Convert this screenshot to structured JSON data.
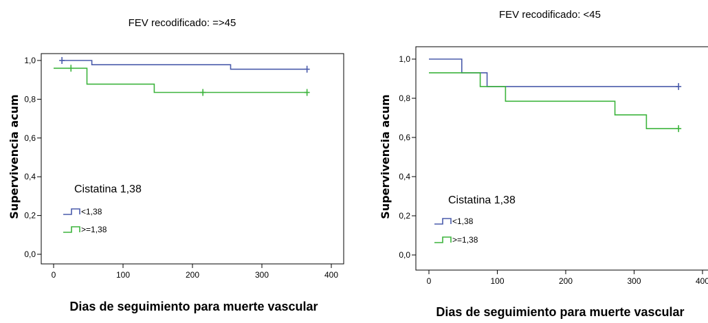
{
  "chart_data": [
    {
      "type": "line",
      "title": "FEV recodificado: =>45",
      "xlabel": "Dias de seguimiento para muerte vascular",
      "ylabel": "Supervivencia acum",
      "xticks": [
        "0",
        "100",
        "200",
        "300",
        "400"
      ],
      "yticks": [
        "0,0",
        "0,2",
        "0,4",
        "0,6",
        "0,8",
        "1,0"
      ],
      "xlim": [
        0,
        400
      ],
      "ylim": [
        0,
        1.0
      ],
      "step": true,
      "grid": false,
      "legend": {
        "title": "Cistatina 1,38",
        "position": "lower-left"
      },
      "series": [
        {
          "name": "<1,38",
          "color": "#4a5bab",
          "steps": [
            [
              12,
              1.0
            ],
            [
              55,
              0.978
            ],
            [
              255,
              0.955
            ],
            [
              365,
              0.955
            ]
          ],
          "censored": [
            [
              12,
              1.0
            ],
            [
              365,
              0.955
            ]
          ]
        },
        {
          "name": ">=1,38",
          "color": "#3cb43c",
          "steps": [
            [
              0,
              0.96
            ],
            [
              48,
              0.878
            ],
            [
              145,
              0.835
            ],
            [
              365,
              0.835
            ]
          ],
          "censored": [
            [
              25,
              0.96
            ],
            [
              215,
              0.835
            ],
            [
              365,
              0.835
            ]
          ]
        }
      ]
    },
    {
      "type": "line",
      "title": "FEV recodificado: <45",
      "xlabel": "Dias de seguimiento para muerte vascular",
      "ylabel": "Supervivencia acum",
      "xticks": [
        "0",
        "100",
        "200",
        "300",
        "400"
      ],
      "yticks": [
        "0,0",
        "0,2",
        "0,4",
        "0,6",
        "0,8",
        "1,0"
      ],
      "xlim": [
        0,
        400
      ],
      "ylim": [
        0,
        1.0
      ],
      "step": true,
      "grid": false,
      "legend": {
        "title": "Cistatina 1,38",
        "position": "lower-left"
      },
      "series": [
        {
          "name": "<1,38",
          "color": "#4a5bab",
          "steps": [
            [
              0,
              1.0
            ],
            [
              48,
              0.93
            ],
            [
              85,
              0.86
            ],
            [
              365,
              0.86
            ]
          ],
          "censored": [
            [
              365,
              0.86
            ]
          ]
        },
        {
          "name": ">=1,38",
          "color": "#3cb43c",
          "steps": [
            [
              0,
              0.93
            ],
            [
              75,
              0.86
            ],
            [
              112,
              0.785
            ],
            [
              272,
              0.715
            ],
            [
              318,
              0.645
            ],
            [
              365,
              0.645
            ]
          ],
          "censored": [
            [
              365,
              0.645
            ]
          ]
        }
      ]
    }
  ]
}
